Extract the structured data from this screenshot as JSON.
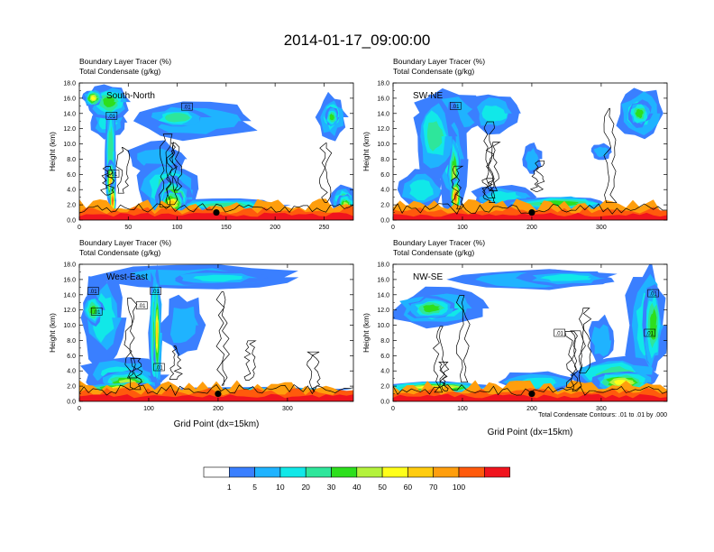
{
  "title": "2014-01-17_09:00:00",
  "colors": {
    "palette": [
      "#ffffff",
      "#3a7fff",
      "#1fb3ff",
      "#11e8e8",
      "#2ee69b",
      "#2ddf1d",
      "#b4f23c",
      "#ffff1a",
      "#ffcc0f",
      "#ff9e0d",
      "#ff5a0c",
      "#f0141e"
    ],
    "contour": "#000000"
  },
  "colorbar": {
    "labels": [
      "1",
      "5",
      "10",
      "20",
      "30",
      "40",
      "50",
      "60",
      "70",
      "100"
    ]
  },
  "footnote": "Total Condensate Contours: .01 to .01 by .000",
  "chart_data": [
    {
      "type": "heatmap",
      "panel": "top-left",
      "name": "South-North",
      "subtitle1": "Boundary Layer Tracer   (%)",
      "subtitle2": "Total Condensate   (g/kg)",
      "ylabel": "Height (km)",
      "xlabel": "",
      "ylim": [
        0,
        18
      ],
      "xlim": [
        0,
        280
      ],
      "yticks": [
        "0.0",
        "2.0",
        "4.0",
        "6.0",
        "8.0",
        "10.0",
        "12.0",
        "14.0",
        "16.0",
        "18.0"
      ],
      "xticks": [
        0,
        50,
        100,
        150,
        200,
        250
      ],
      "marker": {
        "x": 140,
        "y": 1.0
      },
      "contour_labels": [
        {
          "text": ".01",
          "x": 33,
          "y": 13.7
        },
        {
          "text": ".01",
          "x": 110,
          "y": 14.9
        },
        {
          "text": ".01",
          "x": 35,
          "y": 6.1
        }
      ],
      "features": [
        {
          "x": 14,
          "y": 16.0,
          "w": 20,
          "h": 2.4,
          "level": 7
        },
        {
          "x": 30,
          "y": 15.5,
          "w": 40,
          "h": 4.5,
          "level": 5
        },
        {
          "x": 30,
          "y": 12.8,
          "w": 36,
          "h": 4.0,
          "level": 3
        },
        {
          "x": 32,
          "y": 9,
          "w": 12,
          "h": 16,
          "level": 4
        },
        {
          "x": 32,
          "y": 5,
          "w": 10,
          "h": 6,
          "level": 8
        },
        {
          "x": 34,
          "y": 2.5,
          "w": 7,
          "h": 5,
          "level": 10
        },
        {
          "x": 120,
          "y": 13.0,
          "w": 120,
          "h": 5.0,
          "level": 2
        },
        {
          "x": 100,
          "y": 13.5,
          "w": 60,
          "h": 3.0,
          "level": 4
        },
        {
          "x": 80,
          "y": 8,
          "w": 60,
          "h": 4.5,
          "level": 2
        },
        {
          "x": 90,
          "y": 4.0,
          "w": 60,
          "h": 7.5,
          "level": 4
        },
        {
          "x": 95,
          "y": 3.0,
          "w": 36,
          "h": 5.0,
          "level": 6
        },
        {
          "x": 95,
          "y": 2.2,
          "w": 26,
          "h": 3.4,
          "level": 8
        },
        {
          "x": 150,
          "y": 2.0,
          "w": 120,
          "h": 1.6,
          "level": 4
        },
        {
          "x": 270,
          "y": 2.6,
          "w": 26,
          "h": 4.0,
          "level": 4
        },
        {
          "x": 272,
          "y": 2.0,
          "w": 18,
          "h": 2.8,
          "level": 6
        },
        {
          "x": 258,
          "y": 13.5,
          "w": 30,
          "h": 6.0,
          "level": 3
        },
        {
          "x": 258,
          "y": 13.5,
          "w": 14,
          "h": 2.6,
          "level": 5
        }
      ],
      "surface_levels": [
        9,
        10,
        11
      ]
    },
    {
      "type": "heatmap",
      "panel": "top-right",
      "name": "SW-NE",
      "subtitle1": "Boundary Layer Tracer   (%)",
      "subtitle2": "Total Condensate   (g/kg)",
      "ylabel": "Height (km)",
      "xlabel": "",
      "ylim": [
        0,
        18
      ],
      "xlim": [
        0,
        395
      ],
      "yticks": [
        "0.0",
        "2.0",
        "4.0",
        "6.0",
        "8.0",
        "10.0",
        "12.0",
        "14.0",
        "16.0",
        "18.0"
      ],
      "xticks": [
        0,
        100,
        200,
        300
      ],
      "marker": {
        "x": 200,
        "y": 1.0
      },
      "contour_labels": [
        {
          "text": ".01",
          "x": 90,
          "y": 15.0
        }
      ],
      "features": [
        {
          "x": 85,
          "y": 14.0,
          "w": 110,
          "h": 6.0,
          "level": 2
        },
        {
          "x": 60,
          "y": 11.0,
          "w": 60,
          "h": 10.0,
          "level": 4
        },
        {
          "x": 85,
          "y": 8.0,
          "w": 40,
          "h": 14.0,
          "level": 3
        },
        {
          "x": 88,
          "y": 6.0,
          "w": 18,
          "h": 10.0,
          "level": 6
        },
        {
          "x": 90,
          "y": 3.0,
          "w": 16,
          "h": 5.0,
          "level": 10
        },
        {
          "x": 145,
          "y": 14.0,
          "w": 70,
          "h": 5.0,
          "level": 3
        },
        {
          "x": 40,
          "y": 4.0,
          "w": 70,
          "h": 5.0,
          "level": 3
        },
        {
          "x": 160,
          "y": 3.0,
          "w": 90,
          "h": 3.0,
          "level": 3
        },
        {
          "x": 240,
          "y": 2.2,
          "w": 160,
          "h": 2.0,
          "level": 5
        },
        {
          "x": 355,
          "y": 14.0,
          "w": 70,
          "h": 7.0,
          "level": 3
        },
        {
          "x": 355,
          "y": 14.0,
          "w": 34,
          "h": 3.4,
          "level": 5
        },
        {
          "x": 300,
          "y": 9.0,
          "w": 30,
          "h": 2.0,
          "level": 2
        },
        {
          "x": 200,
          "y": 8.0,
          "w": 28,
          "h": 4.0,
          "level": 2
        }
      ],
      "surface_levels": [
        9,
        10,
        11
      ]
    },
    {
      "type": "heatmap",
      "panel": "bottom-left",
      "name": "West-East",
      "subtitle1": "Boundary Layer Tracer   (%)",
      "subtitle2": "Total Condensate   (g/kg)",
      "ylabel": "Height (km)",
      "xlabel": "Grid Point (dx=15km)",
      "ylim": [
        0,
        18
      ],
      "xlim": [
        0,
        395
      ],
      "yticks": [
        "0.0",
        "2.0",
        "4.0",
        "6.0",
        "8.0",
        "10.0",
        "12.0",
        "14.0",
        "16.0",
        "18.0"
      ],
      "xticks": [
        0,
        100,
        200,
        300
      ],
      "marker": {
        "x": 200,
        "y": 1.0
      },
      "contour_labels": [
        {
          "text": ".01",
          "x": 20,
          "y": 14.5
        },
        {
          "text": ".01",
          "x": 25,
          "y": 11.8
        },
        {
          "text": ".01",
          "x": 110,
          "y": 14.5
        },
        {
          "text": ".01",
          "x": 90,
          "y": 12.6
        },
        {
          "text": ".01",
          "x": 115,
          "y": 4.5
        }
      ],
      "features": [
        {
          "x": 170,
          "y": 16.3,
          "w": 280,
          "h": 3.4,
          "level": 2
        },
        {
          "x": 200,
          "y": 16.2,
          "w": 140,
          "h": 2.0,
          "level": 3
        },
        {
          "x": 35,
          "y": 11.0,
          "w": 60,
          "h": 12.0,
          "level": 3
        },
        {
          "x": 20,
          "y": 12.0,
          "w": 30,
          "h": 4.0,
          "level": 5
        },
        {
          "x": 110,
          "y": 9.0,
          "w": 20,
          "h": 18.0,
          "level": 5
        },
        {
          "x": 112,
          "y": 9.0,
          "w": 10,
          "h": 14.0,
          "level": 8
        },
        {
          "x": 60,
          "y": 3.5,
          "w": 120,
          "h": 5.0,
          "level": 3
        },
        {
          "x": 70,
          "y": 2.5,
          "w": 90,
          "h": 3.2,
          "level": 6
        },
        {
          "x": 60,
          "y": 1.6,
          "w": 100,
          "h": 1.8,
          "level": 9
        },
        {
          "x": 260,
          "y": 1.4,
          "w": 280,
          "h": 1.0,
          "level": 3
        },
        {
          "x": 150,
          "y": 10.0,
          "w": 60,
          "h": 8.0,
          "level": 2
        }
      ],
      "surface_levels": [
        9,
        10,
        11
      ]
    },
    {
      "type": "heatmap",
      "panel": "bottom-right",
      "name": "NW-SE",
      "subtitle1": "Boundary Layer Tracer   (%)",
      "subtitle2": "Total Condensate   (g/kg)",
      "ylabel": "Height (km)",
      "xlabel": "Grid Point (dx=15km)",
      "ylim": [
        0,
        18
      ],
      "xlim": [
        0,
        395
      ],
      "yticks": [
        "0.0",
        "2.0",
        "4.0",
        "6.0",
        "8.0",
        "10.0",
        "12.0",
        "14.0",
        "16.0",
        "18.0"
      ],
      "xticks": [
        0,
        100,
        200,
        300
      ],
      "marker": {
        "x": 200,
        "y": 1.0
      },
      "contour_labels": [
        {
          "text": ".01",
          "x": 375,
          "y": 14.2
        },
        {
          "text": ".01",
          "x": 240,
          "y": 9.0
        },
        {
          "text": ".01",
          "x": 370,
          "y": 9.0
        }
      ],
      "features": [
        {
          "x": 65,
          "y": 12.2,
          "w": 140,
          "h": 5.0,
          "level": 3
        },
        {
          "x": 55,
          "y": 12.2,
          "w": 70,
          "h": 3.0,
          "level": 5
        },
        {
          "x": 200,
          "y": 16.0,
          "w": 240,
          "h": 3.0,
          "level": 2
        },
        {
          "x": 250,
          "y": 16.2,
          "w": 130,
          "h": 2.0,
          "level": 3
        },
        {
          "x": 365,
          "y": 10.0,
          "w": 60,
          "h": 16.0,
          "level": 3
        },
        {
          "x": 375,
          "y": 10.0,
          "w": 28,
          "h": 12.0,
          "level": 5
        },
        {
          "x": 60,
          "y": 1.8,
          "w": 150,
          "h": 1.6,
          "level": 8
        },
        {
          "x": 210,
          "y": 2.5,
          "w": 120,
          "h": 3.0,
          "level": 3
        },
        {
          "x": 320,
          "y": 3.5,
          "w": 130,
          "h": 5.0,
          "level": 4
        },
        {
          "x": 330,
          "y": 2.5,
          "w": 90,
          "h": 3.0,
          "level": 7
        },
        {
          "x": 300,
          "y": 8.0,
          "w": 40,
          "h": 6.0,
          "level": 2
        }
      ],
      "surface_levels": [
        9,
        10,
        11
      ]
    }
  ]
}
